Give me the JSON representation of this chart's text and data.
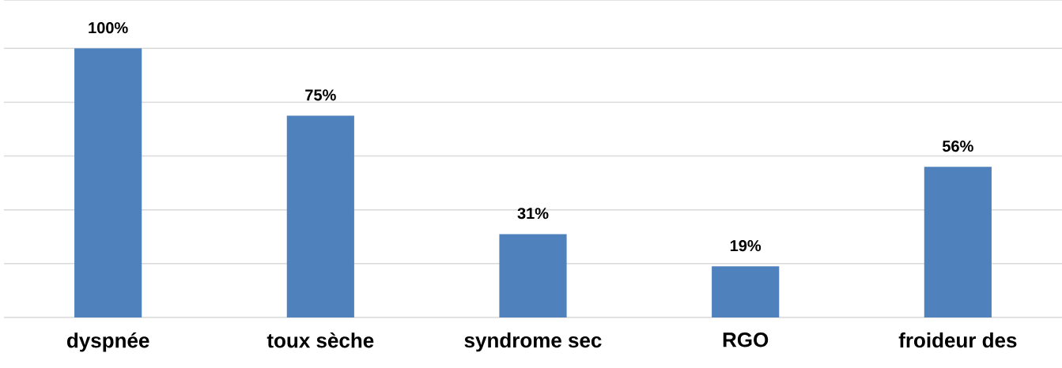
{
  "chart_data": {
    "type": "bar",
    "categories": [
      "dyspnée",
      "toux sèche",
      "syndrome sec",
      "RGO",
      "froideur des"
    ],
    "values": [
      100,
      75,
      31,
      19,
      56
    ],
    "value_labels": [
      "100%",
      "75%",
      "31%",
      "19%",
      "56%"
    ],
    "color": "#4f81bd",
    "ylim": [
      0,
      118
    ],
    "yticks": [
      {
        "value": 0,
        "label": null
      },
      {
        "value": 20,
        "label": null
      },
      {
        "value": 40,
        "label": null
      },
      {
        "value": 60,
        "label": null
      },
      {
        "value": 80,
        "label": null
      },
      {
        "value": 100,
        "label": null
      },
      {
        "value": 118,
        "label": null
      }
    ],
    "tick_labels": "x",
    "grid": "y"
  }
}
